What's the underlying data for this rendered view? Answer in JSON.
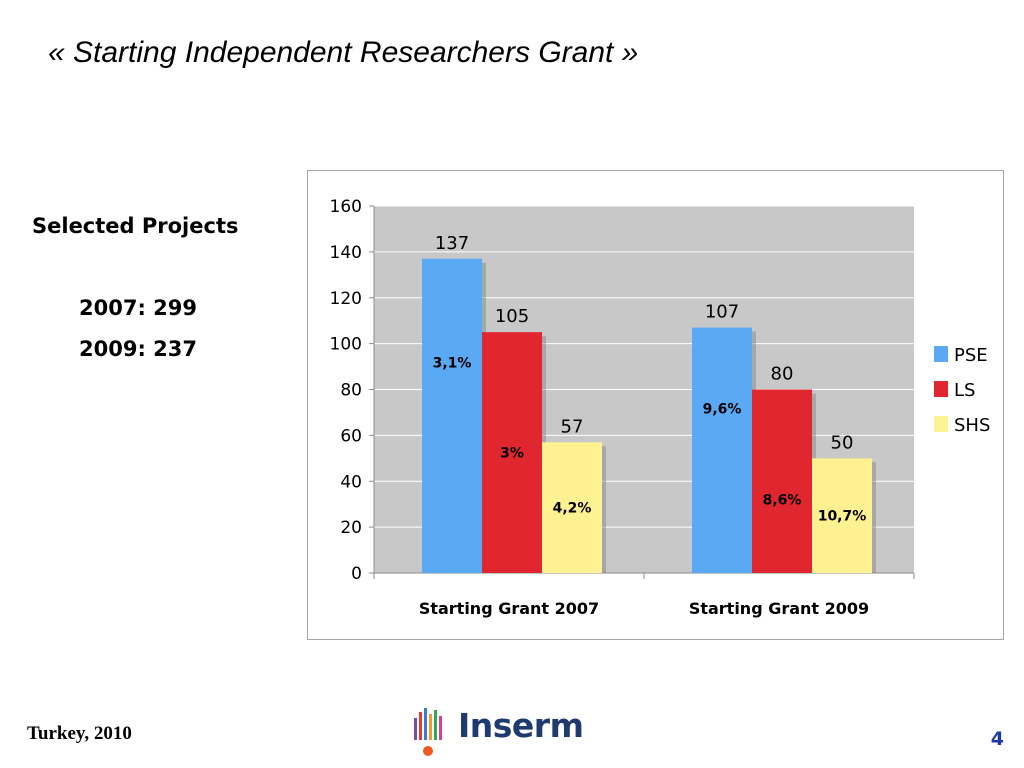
{
  "slide": {
    "title": "« Starting Independent Researchers Grant »",
    "selected_heading": "Selected Projects",
    "selected_lines": [
      "2007: 299",
      "2009: 237"
    ],
    "footer_left": "Turkey, 2010",
    "logo_text": "Inserm",
    "page_number": "4"
  },
  "chart_data": {
    "type": "bar",
    "categories": [
      "Starting Grant 2007",
      "Starting Grant 2009"
    ],
    "series": [
      {
        "name": "PSE",
        "values": [
          137,
          107
        ],
        "inner_labels": [
          "3,1%",
          "9,6%"
        ],
        "color": "#5aa9f5"
      },
      {
        "name": "LS",
        "values": [
          105,
          80
        ],
        "inner_labels": [
          "3%",
          "8,6%"
        ],
        "color": "#e0262e"
      },
      {
        "name": "SHS",
        "values": [
          57,
          50
        ],
        "inner_labels": [
          "4,2%",
          "10,7%"
        ],
        "color": "#fdf192"
      }
    ],
    "ylim": [
      0,
      160
    ],
    "yticks": [
      0,
      20,
      40,
      60,
      80,
      100,
      120,
      140,
      160
    ],
    "grid": true,
    "plot_background": "#c8c8c8",
    "legend": "right"
  }
}
